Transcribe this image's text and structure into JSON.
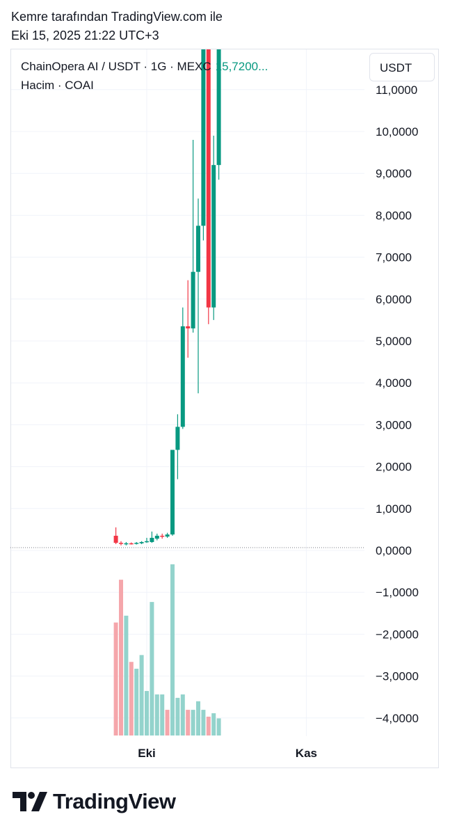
{
  "header": {
    "author_line": "Kemre tarafından TradingView.com ile",
    "date_line": "Eki 15, 2025 21:22 UTC+3"
  },
  "legend": {
    "symbol_line": "ChainOpera AI / USDT · 1G · MEXC",
    "last_price": "15,7200...",
    "volume_line": "Hacim · COAI"
  },
  "unit_label": "USDT",
  "brand": "TradingView",
  "colors": {
    "up": "#089981",
    "down": "#f23645",
    "up_volume": "#93d3cc",
    "down_volume": "#f5a6ab",
    "grid": "#f0f3fa",
    "text": "#131722"
  },
  "chart_data": {
    "type": "candlestick",
    "y_axis_ticks": [
      "11,0000",
      "10,0000",
      "9,0000",
      "8,0000",
      "7,0000",
      "6,0000",
      "5,0000",
      "4,0000",
      "3,0000",
      "2,0000",
      "1,0000",
      "0,0000",
      "−1,0000",
      "−2,0000",
      "−3,0000",
      "−4,0000"
    ],
    "y_axis_values": [
      11,
      10,
      9,
      8,
      7,
      6,
      5,
      4,
      3,
      2,
      1,
      0,
      -1,
      -2,
      -3,
      -4
    ],
    "x_axis_ticks": [
      {
        "label": "Eki",
        "day": 0
      },
      {
        "label": "Kas",
        "day": 31
      }
    ],
    "first_candle_day": -6,
    "candles": [
      {
        "o": 0.35,
        "h": 0.55,
        "l": 0.15,
        "c": 0.18
      },
      {
        "o": 0.18,
        "h": 0.22,
        "l": 0.12,
        "c": 0.16
      },
      {
        "o": 0.15,
        "h": 0.2,
        "l": 0.12,
        "c": 0.17
      },
      {
        "o": 0.17,
        "h": 0.19,
        "l": 0.14,
        "c": 0.16
      },
      {
        "o": 0.16,
        "h": 0.2,
        "l": 0.14,
        "c": 0.18
      },
      {
        "o": 0.17,
        "h": 0.22,
        "l": 0.15,
        "c": 0.2
      },
      {
        "o": 0.2,
        "h": 0.3,
        "l": 0.18,
        "c": 0.22
      },
      {
        "o": 0.2,
        "h": 0.45,
        "l": 0.18,
        "c": 0.3
      },
      {
        "o": 0.28,
        "h": 0.4,
        "l": 0.24,
        "c": 0.35
      },
      {
        "o": 0.35,
        "h": 0.4,
        "l": 0.28,
        "c": 0.33
      },
      {
        "o": 0.33,
        "h": 0.42,
        "l": 0.3,
        "c": 0.38
      },
      {
        "o": 0.38,
        "h": 2.4,
        "l": 0.35,
        "c": 2.4
      },
      {
        "o": 2.4,
        "h": 3.25,
        "l": 1.7,
        "c": 2.95
      },
      {
        "o": 2.95,
        "h": 5.8,
        "l": 2.9,
        "c": 5.35
      },
      {
        "o": 5.35,
        "h": 6.45,
        "l": 4.6,
        "c": 5.3
      },
      {
        "o": 5.3,
        "h": 9.8,
        "l": 5.2,
        "c": 6.65
      },
      {
        "o": 6.65,
        "h": 8.4,
        "l": 3.75,
        "c": 7.75
      },
      {
        "o": 7.75,
        "h": 16.0,
        "l": 7.4,
        "c": 15.5
      },
      {
        "o": 15.5,
        "h": 16.0,
        "l": 5.4,
        "c": 5.8
      },
      {
        "o": 5.8,
        "h": 9.9,
        "l": 5.5,
        "c": 9.2
      },
      {
        "o": 9.2,
        "h": 16.0,
        "l": 8.85,
        "c": 15.72
      }
    ],
    "volume_bars": [
      {
        "v": 0.66,
        "dir": "down"
      },
      {
        "v": 0.91,
        "dir": "down"
      },
      {
        "v": 0.7,
        "dir": "up"
      },
      {
        "v": 0.43,
        "dir": "down"
      },
      {
        "v": 0.39,
        "dir": "up"
      },
      {
        "v": 0.47,
        "dir": "up"
      },
      {
        "v": 0.26,
        "dir": "up"
      },
      {
        "v": 0.78,
        "dir": "up"
      },
      {
        "v": 0.24,
        "dir": "up"
      },
      {
        "v": 0.24,
        "dir": "up"
      },
      {
        "v": 0.15,
        "dir": "down"
      },
      {
        "v": 1.0,
        "dir": "up"
      },
      {
        "v": 0.22,
        "dir": "up"
      },
      {
        "v": 0.24,
        "dir": "up"
      },
      {
        "v": 0.15,
        "dir": "down"
      },
      {
        "v": 0.15,
        "dir": "up"
      },
      {
        "v": 0.2,
        "dir": "up"
      },
      {
        "v": 0.15,
        "dir": "up"
      },
      {
        "v": 0.11,
        "dir": "down"
      },
      {
        "v": 0.13,
        "dir": "up"
      },
      {
        "v": 0.1,
        "dir": "up"
      }
    ]
  }
}
